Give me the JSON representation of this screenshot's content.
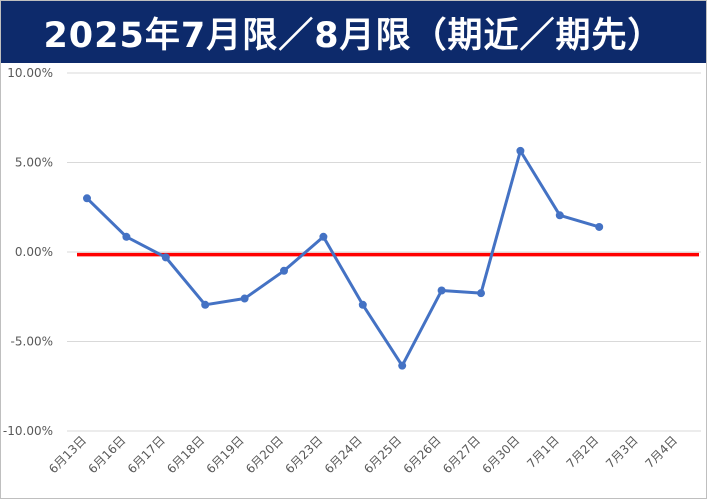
{
  "title": "2025年7月限／8月限（期近／期先）",
  "chart_data": {
    "type": "line",
    "categories": [
      "6月13日",
      "6月16日",
      "6月17日",
      "6月18日",
      "6月19日",
      "6月20日",
      "6月23日",
      "6月24日",
      "6月25日",
      "6月26日",
      "6月27日",
      "6月30日",
      "7月1日",
      "7月2日",
      "7月3日",
      "7月4日"
    ],
    "series": [
      {
        "values": [
          3.0,
          0.85,
          -0.3,
          -2.95,
          -2.6,
          -1.05,
          0.85,
          -2.95,
          -6.35,
          -2.15,
          -2.3,
          5.65,
          2.05,
          1.4,
          null,
          null
        ],
        "color": "#4472c4"
      }
    ],
    "reference_line": {
      "y": -0.15,
      "color": "#ff0000"
    },
    "y_ticks": [
      "10.00%",
      "5.00%",
      "0.00%",
      "-5.00%",
      "-10.00%"
    ],
    "ylim": [
      -10,
      10
    ],
    "grid": true,
    "gridline_color": "#d9d9d9"
  }
}
